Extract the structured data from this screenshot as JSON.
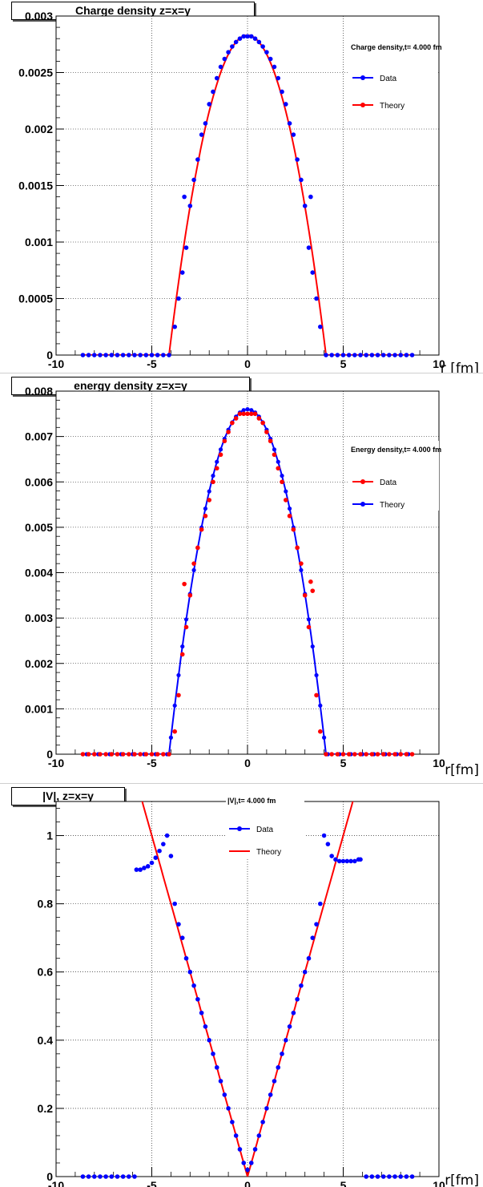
{
  "charts": [
    {
      "title_box": "Charge density z=x=y",
      "type": "scatter+line",
      "xlabel": "r [fm]",
      "xlim": [
        -10,
        10
      ],
      "ylim": [
        0,
        0.003
      ],
      "yticks": [
        "0",
        "0.0005",
        "0.001",
        "0.0015",
        "0.002",
        "0.0025",
        "0.003"
      ],
      "xticks": [
        "-10",
        "-5",
        "0",
        "5",
        "10"
      ],
      "legend_title": "Charge density,t= 4.000 fm",
      "legend": [
        {
          "label": "Data",
          "color": "#0000ff",
          "style": "marker-line"
        },
        {
          "label": "Theory",
          "color": "#ff0000",
          "style": "marker-line"
        }
      ]
    },
    {
      "title_box": "energy density z=x=y",
      "type": "scatter+line",
      "xlabel": "r[fm]",
      "xlim": [
        -10,
        10
      ],
      "ylim": [
        0,
        0.008
      ],
      "yticks": [
        "0",
        "0.001",
        "0.002",
        "0.003",
        "0.004",
        "0.005",
        "0.006",
        "0.007",
        "0.008"
      ],
      "xticks": [
        "-10",
        "-5",
        "0",
        "5",
        "10"
      ],
      "legend_title": "Energy density,t= 4.000 fm",
      "legend": [
        {
          "label": "Data",
          "color": "#ff0000",
          "style": "marker-line"
        },
        {
          "label": "Theory",
          "color": "#0000ff",
          "style": "marker-line"
        }
      ]
    },
    {
      "title_box": "|V|, z=x=y",
      "type": "scatter+line",
      "xlabel": "r[fm]",
      "xlim": [
        -10,
        10
      ],
      "ylim": [
        0,
        1.1
      ],
      "yticks": [
        "0",
        "0.2",
        "0.4",
        "0.6",
        "0.8",
        "1"
      ],
      "xticks": [
        "-10",
        "-5",
        "0",
        "5",
        "10"
      ],
      "legend_title": "|V|,t= 4.000 fm",
      "legend": [
        {
          "label": "Data",
          "color": "#0000ff",
          "style": "marker-line"
        },
        {
          "label": "Theory",
          "color": "#ff0000",
          "style": "line"
        }
      ]
    }
  ],
  "chart_data": [
    {
      "type": "scatter",
      "title": "Charge density z=x=y",
      "xlabel": "r [fm]",
      "xlim": [
        -10,
        10
      ],
      "ylim": [
        0,
        0.003
      ],
      "grid": true,
      "legend_position": "top-right",
      "theory_curve": {
        "name": "Theory",
        "color": "#ff0000",
        "model": "parabola",
        "peak": 0.00283,
        "radius": 4.1
      },
      "series": [
        {
          "name": "Data",
          "color": "#0000ff",
          "x": [
            -8.6,
            -8.3,
            -8.0,
            -7.7,
            -7.4,
            -7.1,
            -6.8,
            -6.5,
            -6.2,
            -5.9,
            -5.6,
            -5.3,
            -5.0,
            -4.7,
            -4.4,
            -4.1,
            -3.8,
            -3.6,
            -3.4,
            -3.2,
            -3.0,
            -2.8,
            -2.6,
            -2.4,
            -2.2,
            -2.0,
            -1.8,
            -1.6,
            -1.4,
            -1.2,
            -1.0,
            -0.8,
            -0.6,
            -0.4,
            -0.2,
            0.0,
            0.2,
            0.4,
            0.6,
            0.8,
            1.0,
            1.2,
            1.4,
            1.6,
            1.8,
            2.0,
            2.2,
            2.4,
            2.6,
            2.8,
            3.0,
            3.2,
            3.4,
            3.6,
            3.8,
            4.1,
            4.4,
            4.7,
            5.0,
            5.3,
            5.6,
            5.9,
            6.2,
            6.5,
            6.8,
            7.1,
            7.4,
            7.7,
            8.0,
            8.3,
            8.6,
            -3.3,
            3.3
          ],
          "y": [
            0,
            0,
            0,
            0,
            0,
            0,
            0,
            0,
            0,
            0,
            0,
            0,
            0,
            0,
            0,
            0,
            0.00025,
            0.0005,
            0.00073,
            0.00095,
            0.00132,
            0.00155,
            0.00173,
            0.00195,
            0.00205,
            0.00222,
            0.00233,
            0.00245,
            0.00255,
            0.00262,
            0.00268,
            0.00273,
            0.00277,
            0.0028,
            0.00282,
            0.00282,
            0.00282,
            0.0028,
            0.00277,
            0.00273,
            0.00268,
            0.00262,
            0.00255,
            0.00245,
            0.00233,
            0.00222,
            0.00205,
            0.00195,
            0.00173,
            0.00155,
            0.00132,
            0.00095,
            0.00073,
            0.0005,
            0.00025,
            0,
            0,
            0,
            0,
            0,
            0,
            0,
            0,
            0,
            0,
            0,
            0,
            0,
            0,
            0,
            0,
            0.0014,
            0.0014
          ]
        }
      ]
    },
    {
      "type": "scatter",
      "title": "energy density z=x=y",
      "xlabel": "r[fm]",
      "xlim": [
        -10,
        10
      ],
      "ylim": [
        0,
        0.008
      ],
      "grid": true,
      "legend_position": "top-right",
      "theory_curve": {
        "name": "Theory",
        "color": "#0000ff",
        "model": "parabola-with-markers",
        "peak": 0.0076,
        "radius": 4.1
      },
      "series": [
        {
          "name": "Data",
          "color": "#ff0000",
          "x": [
            -8.6,
            -8.3,
            -8.0,
            -7.7,
            -7.4,
            -7.1,
            -6.8,
            -6.5,
            -6.2,
            -5.9,
            -5.6,
            -5.3,
            -5.0,
            -4.7,
            -4.4,
            -4.1,
            -3.8,
            -3.6,
            -3.4,
            -3.3,
            -3.2,
            -3.0,
            -2.8,
            -2.6,
            -2.4,
            -2.2,
            -2.0,
            -1.8,
            -1.6,
            -1.4,
            -1.2,
            -1.0,
            -0.8,
            -0.6,
            -0.4,
            -0.2,
            0.0,
            0.2,
            0.4,
            0.6,
            0.8,
            1.0,
            1.2,
            1.4,
            1.6,
            1.8,
            2.0,
            2.2,
            2.4,
            2.6,
            2.8,
            3.0,
            3.2,
            3.3,
            3.4,
            3.6,
            3.8,
            4.1,
            4.4,
            4.7,
            5.0,
            5.3,
            5.6,
            5.9,
            6.2,
            6.5,
            6.8,
            7.1,
            7.4,
            7.7,
            8.0,
            8.3,
            8.6
          ],
          "y": [
            0,
            0,
            0,
            0,
            0,
            0,
            0,
            0,
            0,
            0,
            0,
            0,
            0,
            0,
            0,
            0,
            0.0005,
            0.0013,
            0.0022,
            0.00375,
            0.0028,
            0.0035,
            0.0042,
            0.00455,
            0.00495,
            0.00525,
            0.0056,
            0.006,
            0.0063,
            0.0066,
            0.0069,
            0.0071,
            0.0073,
            0.0074,
            0.0075,
            0.0075,
            0.0075,
            0.0075,
            0.0075,
            0.0074,
            0.0073,
            0.0071,
            0.0069,
            0.0066,
            0.0063,
            0.006,
            0.0056,
            0.00525,
            0.00495,
            0.00455,
            0.0042,
            0.0035,
            0.0028,
            0.0038,
            0.0036,
            0.0013,
            0.0005,
            0,
            0,
            0,
            0,
            0,
            0,
            0,
            0,
            0,
            0,
            0,
            0,
            0,
            0,
            0,
            0
          ]
        }
      ]
    },
    {
      "type": "scatter",
      "title": "|V|, z=x=y",
      "xlabel": "r[fm]",
      "xlim": [
        -10,
        10
      ],
      "ylim": [
        0,
        1.1
      ],
      "grid": true,
      "legend_position": "top-center",
      "theory_curve": {
        "name": "Theory",
        "color": "#ff0000",
        "model": "abs-linear",
        "slope": 0.2
      },
      "series": [
        {
          "name": "Data",
          "color": "#0000ff",
          "x": [
            -8.6,
            -8.3,
            -8.0,
            -7.7,
            -7.4,
            -7.1,
            -6.8,
            -6.5,
            -6.2,
            -5.9,
            -5.8,
            -5.6,
            -5.4,
            -5.2,
            -5.0,
            -4.8,
            -4.6,
            -4.4,
            -4.2,
            -4.0,
            -3.8,
            -3.6,
            -3.4,
            -3.2,
            -3.0,
            -2.8,
            -2.6,
            -2.4,
            -2.2,
            -2.0,
            -1.8,
            -1.6,
            -1.4,
            -1.2,
            -1.0,
            -0.8,
            -0.6,
            -0.4,
            -0.2,
            0.0,
            0.2,
            0.4,
            0.6,
            0.8,
            1.0,
            1.2,
            1.4,
            1.6,
            1.8,
            2.0,
            2.2,
            2.4,
            2.6,
            2.8,
            3.0,
            3.2,
            3.4,
            3.6,
            3.8,
            4.0,
            4.2,
            4.4,
            4.6,
            4.8,
            5.0,
            5.2,
            5.4,
            5.6,
            5.8,
            5.9,
            6.2,
            6.5,
            6.8,
            7.1,
            7.4,
            7.7,
            8.0,
            8.3,
            8.6
          ],
          "y": [
            0,
            0,
            0,
            0,
            0,
            0,
            0,
            0,
            0,
            0,
            0.9,
            0.9,
            0.905,
            0.91,
            0.92,
            0.935,
            0.955,
            0.975,
            1.0,
            0.94,
            0.8,
            0.74,
            0.7,
            0.64,
            0.6,
            0.56,
            0.52,
            0.48,
            0.44,
            0.4,
            0.36,
            0.32,
            0.28,
            0.24,
            0.2,
            0.16,
            0.12,
            0.08,
            0.04,
            0.02,
            0.04,
            0.08,
            0.12,
            0.16,
            0.2,
            0.24,
            0.28,
            0.32,
            0.36,
            0.4,
            0.44,
            0.48,
            0.52,
            0.56,
            0.6,
            0.64,
            0.7,
            0.74,
            0.8,
            1.0,
            0.975,
            0.94,
            0.93,
            0.925,
            0.925,
            0.925,
            0.925,
            0.925,
            0.93,
            0.93,
            0,
            0,
            0,
            0,
            0,
            0,
            0,
            0,
            0
          ]
        }
      ]
    }
  ]
}
